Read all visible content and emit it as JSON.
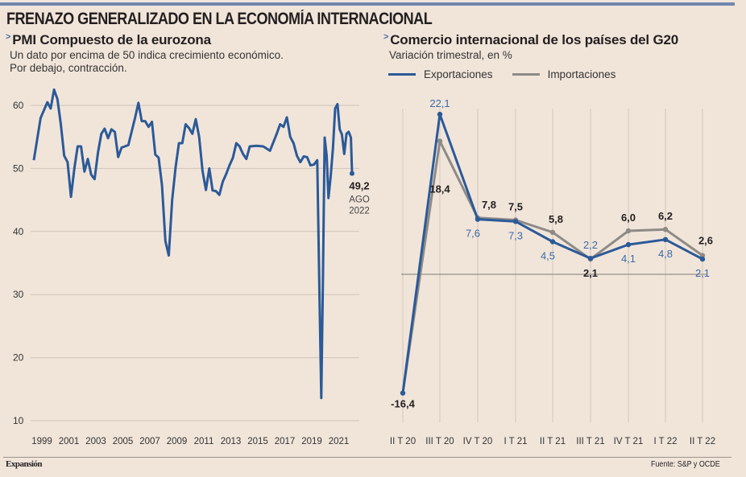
{
  "header": {
    "title": "FRENAZO GENERALIZADO EN LA ECONOMÍA INTERNACIONAL",
    "accent_color": "#6f87ad"
  },
  "left_panel": {
    "title": "PMI Compuesto de la eurozona",
    "description_line1": "Un dato por encima de 50 indica crecimiento económico.",
    "description_line2": "Por debajo, contracción.",
    "last_value_label": "49,2",
    "last_month_label": "AGO",
    "last_year_label": "2022"
  },
  "right_panel": {
    "title": "Comercio internacional de los países del G20",
    "description": "Variación trimestral, en %",
    "legend": [
      {
        "label": "Exportaciones",
        "color": "#2b5a98"
      },
      {
        "label": "Importaciones",
        "color": "#8e8a86"
      }
    ]
  },
  "footer": {
    "brand": "Expansión",
    "source": "Fuente: S&P y OCDE"
  },
  "chart_data": [
    {
      "type": "line",
      "title": "PMI Compuesto de la eurozona",
      "subtitle": "Un dato por encima de 50 indica crecimiento económico. Por debajo, contracción.",
      "xlabel": "",
      "ylabel": "",
      "ylim": [
        10,
        63
      ],
      "yticks": [
        10,
        20,
        30,
        40,
        50,
        60
      ],
      "xticks": [
        "1999",
        "2001",
        "2003",
        "2005",
        "2007",
        "2009",
        "2011",
        "2013",
        "2015",
        "2017",
        "2019",
        "2021"
      ],
      "grid": true,
      "color": "#2b5a98",
      "series": [
        {
          "name": "PMI Compuesto",
          "x": [
            1999.0,
            1999.5,
            2000.0,
            2000.25,
            2000.5,
            2000.75,
            2001.0,
            2001.25,
            2001.5,
            2001.75,
            2002.0,
            2002.25,
            2002.5,
            2002.75,
            2003.0,
            2003.25,
            2003.5,
            2003.75,
            2004.0,
            2004.25,
            2004.5,
            2004.75,
            2005.0,
            2005.25,
            2005.5,
            2006.0,
            2006.5,
            2006.75,
            2007.0,
            2007.25,
            2007.5,
            2007.75,
            2008.0,
            2008.25,
            2008.5,
            2008.75,
            2009.0,
            2009.25,
            2009.5,
            2009.75,
            2010.0,
            2010.25,
            2010.5,
            2010.75,
            2011.0,
            2011.25,
            2011.5,
            2011.75,
            2012.0,
            2012.25,
            2012.5,
            2012.75,
            2013.0,
            2013.25,
            2013.5,
            2013.75,
            2014.0,
            2014.25,
            2014.5,
            2014.75,
            2015.0,
            2015.5,
            2016.0,
            2016.5,
            2017.0,
            2017.25,
            2017.5,
            2017.75,
            2018.0,
            2018.25,
            2018.5,
            2018.75,
            2019.0,
            2019.25,
            2019.5,
            2019.75,
            2020.0,
            2020.17,
            2020.3,
            2020.42,
            2020.55,
            2020.7,
            2020.83,
            2021.0,
            2021.17,
            2021.33,
            2021.5,
            2021.67,
            2021.83,
            2022.0,
            2022.17,
            2022.33,
            2022.5,
            2022.58
          ],
          "values": [
            51.3,
            58.0,
            60.5,
            59.5,
            62.5,
            61.0,
            57.0,
            52.0,
            51.0,
            45.5,
            50.0,
            53.5,
            53.5,
            49.5,
            51.5,
            49.0,
            48.3,
            52.5,
            55.5,
            56.3,
            54.8,
            56.2,
            55.8,
            51.8,
            53.3,
            53.7,
            58.0,
            60.4,
            57.5,
            57.5,
            56.6,
            57.4,
            52.2,
            51.7,
            47.3,
            38.5,
            36.2,
            45.0,
            50.1,
            54.0,
            54.0,
            57.0,
            56.4,
            55.5,
            57.8,
            55.0,
            49.6,
            46.6,
            50.0,
            46.5,
            46.4,
            45.8,
            47.9,
            49.1,
            50.5,
            51.7,
            54.0,
            53.5,
            52.3,
            51.5,
            53.5,
            53.6,
            53.5,
            52.8,
            55.5,
            57.0,
            56.6,
            58.1,
            55.0,
            54.0,
            52.0,
            51.0,
            51.9,
            51.8,
            50.5,
            50.6,
            51.3,
            29.7,
            13.6,
            31.9,
            54.9,
            52.0,
            45.3,
            48.8,
            53.2,
            59.5,
            60.2,
            56.2,
            55.4,
            52.3,
            55.5,
            55.8,
            54.9,
            49.2
          ]
        }
      ],
      "annotation": {
        "value": 49.2,
        "label": "49,2",
        "date": "AGO 2022"
      }
    },
    {
      "type": "line",
      "title": "Comercio internacional de los países del G20",
      "subtitle": "Variación trimestral, en %",
      "xlabel": "",
      "ylabel": "",
      "ylim": [
        -16.4,
        22.1
      ],
      "grid": true,
      "legend": "top-left",
      "categories": [
        "II T 20",
        "III T 20",
        "IV T 20",
        "I T 21",
        "II T 21",
        "III T 21",
        "IV T 21",
        "I T 22",
        "II T 22"
      ],
      "series": [
        {
          "name": "Exportaciones",
          "color": "#2b5a98",
          "values": [
            -16.4,
            22.1,
            7.6,
            7.3,
            4.5,
            2.2,
            4.1,
            4.8,
            2.1
          ],
          "labels": [
            "-16,4",
            "22,1",
            "7,6",
            "7,3",
            "4,5",
            "2,2",
            "4,1",
            "4,8",
            "2,1"
          ]
        },
        {
          "name": "Importaciones",
          "color": "#8e8a86",
          "values": [
            -16.4,
            18.4,
            7.8,
            7.5,
            5.8,
            2.1,
            6.0,
            6.2,
            2.6
          ],
          "labels": [
            "-16,4",
            "18,4",
            "7,8",
            "7,5",
            "5,8",
            "2,1",
            "6,0",
            "6,2",
            "2,6"
          ]
        }
      ]
    }
  ]
}
